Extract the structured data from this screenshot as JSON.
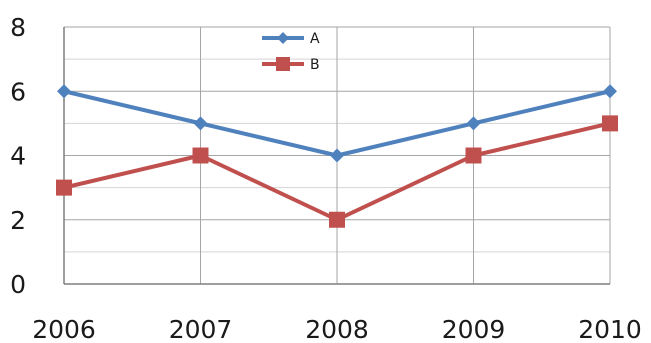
{
  "chart_data": {
    "type": "line",
    "title": "",
    "xlabel": "",
    "ylabel": "",
    "categories": [
      "2006",
      "2007",
      "2008",
      "2009",
      "2010"
    ],
    "ylim": [
      0,
      8
    ],
    "yticks": [
      0,
      2,
      4,
      6,
      8
    ],
    "grid": true,
    "legend_position": "top-center",
    "series": [
      {
        "name": "A",
        "values": [
          6,
          5,
          4,
          5,
          6
        ],
        "color": "#4f81bd",
        "marker": "diamond"
      },
      {
        "name": "B",
        "values": [
          3,
          4,
          2,
          4,
          5
        ],
        "color": "#c0504d",
        "marker": "square"
      }
    ]
  }
}
